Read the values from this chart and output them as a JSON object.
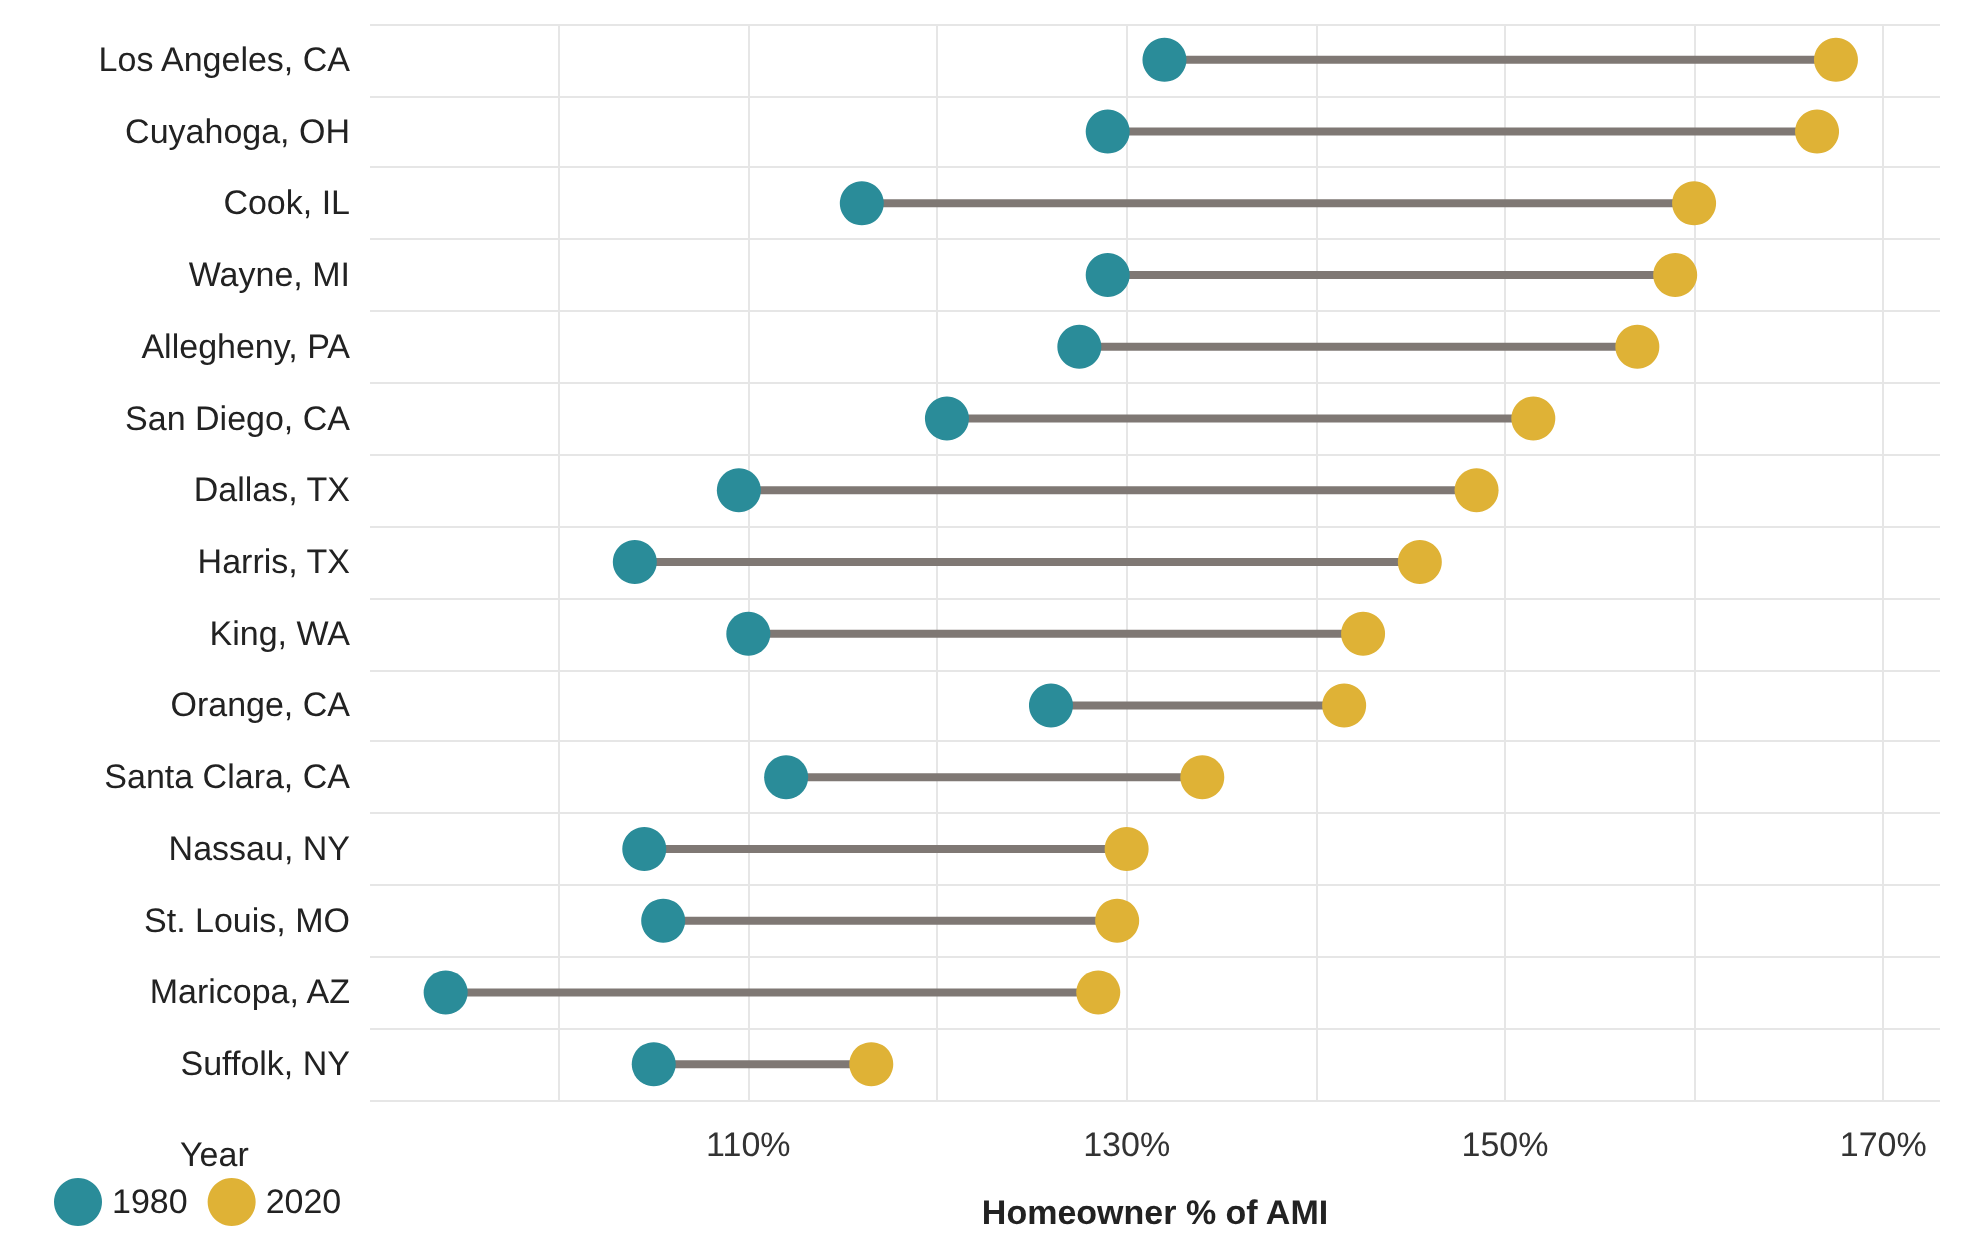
{
  "chart_data": {
    "type": "scatter",
    "orientation": "horizontal",
    "xlabel": "Homeowner % of AMI",
    "legend_title": "Year",
    "legend": "bottom left",
    "grid": true,
    "marker": "circle",
    "categories": [
      "Los Angeles, CA",
      "Cuyahoga, OH",
      "Cook, IL",
      "Wayne, MI",
      "Allegheny, PA",
      "San Diego, CA",
      "Dallas, TX",
      "Harris, TX",
      "King, WA",
      "Orange, CA",
      "Santa Clara, CA",
      "Nassau, NY",
      "St. Louis, MO",
      "Maricopa, AZ",
      "Suffolk, NY"
    ],
    "xlim": [
      90,
      173
    ],
    "xticks": [
      {
        "value": 100,
        "label": null
      },
      {
        "value": 110,
        "label": "110%"
      },
      {
        "value": 120,
        "label": null
      },
      {
        "value": 130,
        "label": "130%"
      },
      {
        "value": 140,
        "label": null
      },
      {
        "value": 150,
        "label": "150%"
      },
      {
        "value": 160,
        "label": null
      },
      {
        "value": 170,
        "label": "170%"
      }
    ],
    "series": [
      {
        "name": "1980",
        "color": "#2a8c99",
        "values": [
          132,
          129,
          116,
          129,
          127.5,
          120.5,
          109.5,
          104,
          110,
          126,
          112,
          104.5,
          105.5,
          94,
          105
        ]
      },
      {
        "name": "2020",
        "color": "#dfb236",
        "values": [
          167.5,
          166.5,
          160,
          159,
          157,
          151.5,
          148.5,
          145.5,
          142.5,
          141.5,
          134,
          130,
          129.5,
          128.5,
          116.5
        ]
      }
    ]
  }
}
